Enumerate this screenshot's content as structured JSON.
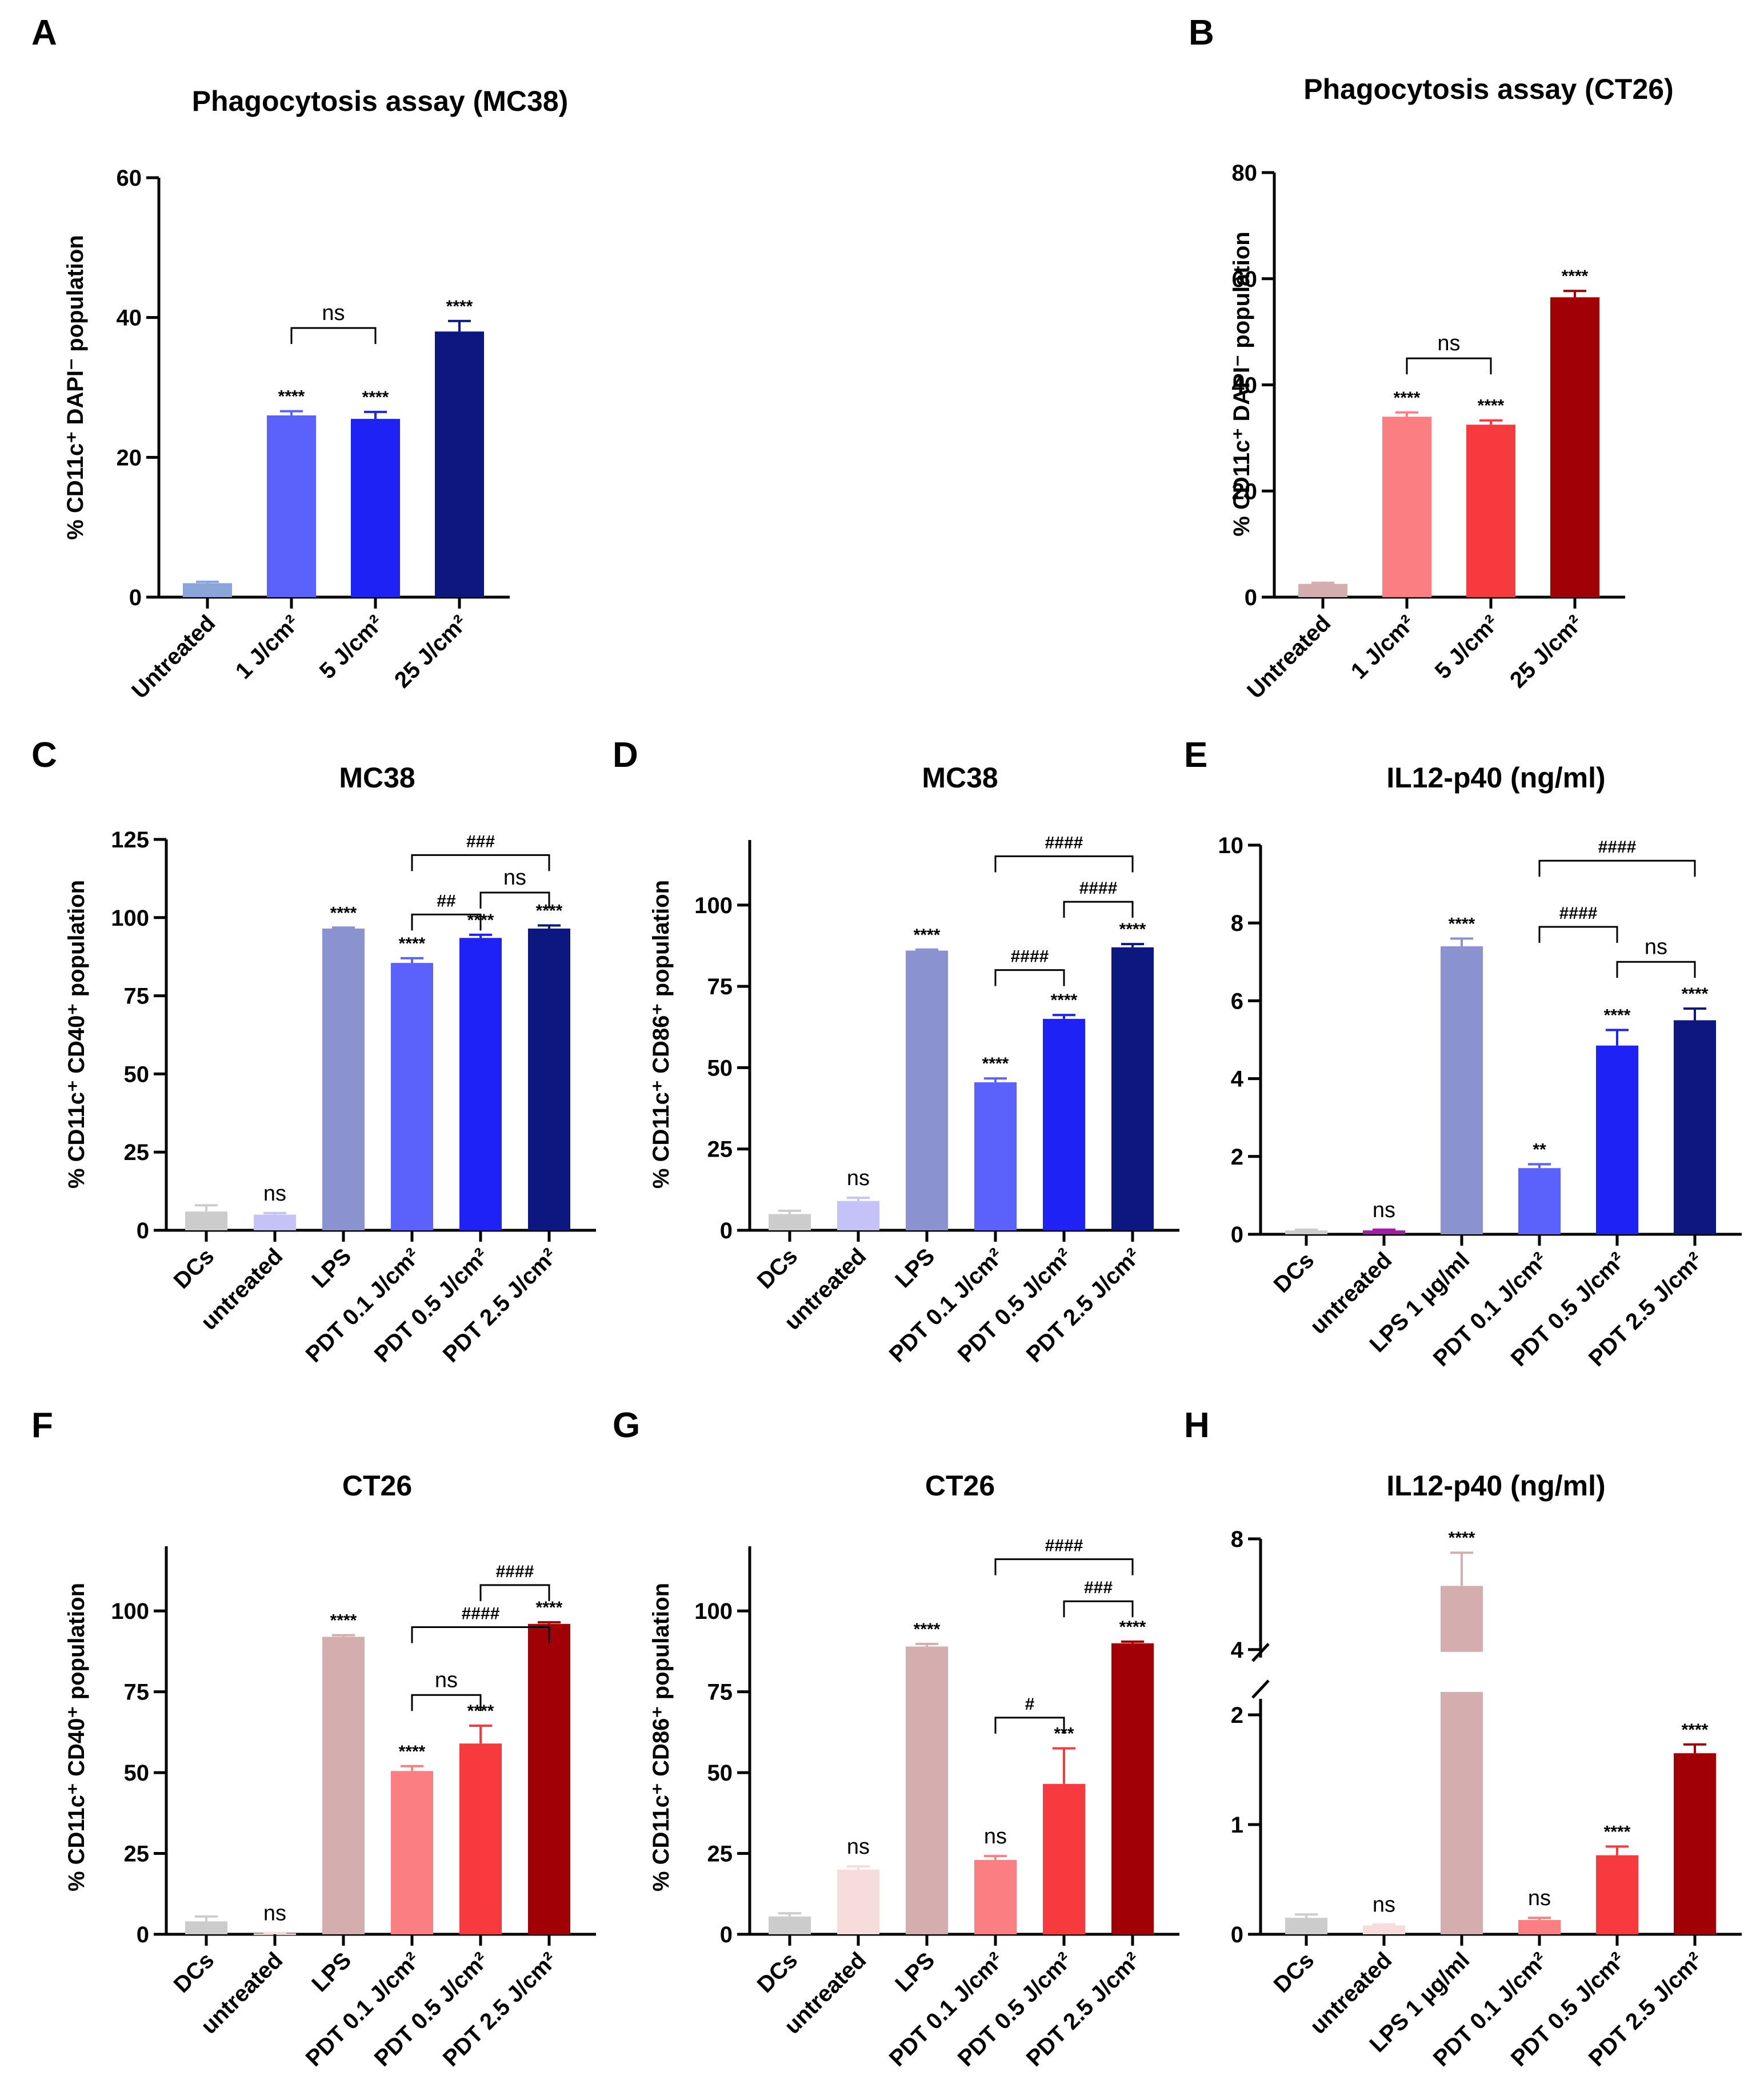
{
  "chart_data": [
    {
      "id": "A",
      "type": "bar",
      "panel_label": "A",
      "title": "Phagocytosis assay (MC38)",
      "ylabel": "% CD11c⁺ DAPI⁻ population",
      "ylim": [
        0,
        60
      ],
      "yticks": [
        0,
        20,
        40,
        60
      ],
      "categories": [
        "Untreated",
        "1 J/cm²",
        "5 J/cm²",
        "25 J/cm²"
      ],
      "values": [
        2,
        26,
        25.5,
        38
      ],
      "errors": [
        0.2,
        0.6,
        1.0,
        1.5
      ],
      "colors": [
        "#8aa5d8",
        "#5a62fb",
        "#1f22f5",
        "#0d1780"
      ],
      "labels": [
        "",
        "****",
        "****",
        "****"
      ],
      "brackets": [
        {
          "from": 1,
          "to": 2,
          "y": 38.5,
          "text": "ns"
        }
      ]
    },
    {
      "id": "B",
      "type": "bar",
      "panel_label": "B",
      "title": "Phagocytosis assay (CT26)",
      "ylabel": "% CD11c⁺ DAPI⁻ population",
      "ylim": [
        0,
        80
      ],
      "yticks": [
        0,
        20,
        40,
        60,
        80
      ],
      "categories": [
        "Untreated",
        "1 J/cm²",
        "5 J/cm²",
        "25 J/cm²"
      ],
      "values": [
        2.5,
        34,
        32.5,
        56.5
      ],
      "errors": [
        0.2,
        0.8,
        0.8,
        1.2
      ],
      "colors": [
        "#d4aeae",
        "#fb7f82",
        "#f73a3e",
        "#a10006"
      ],
      "labels": [
        "",
        "****",
        "****",
        "****"
      ],
      "brackets": [
        {
          "from": 1,
          "to": 2,
          "y": 45,
          "text": "ns"
        }
      ]
    },
    {
      "id": "C",
      "type": "bar",
      "panel_label": "C",
      "title": "MC38",
      "ylabel": "% CD11c⁺ CD40⁺ population",
      "ylim": [
        0,
        125
      ],
      "yticks": [
        0,
        25,
        50,
        75,
        100,
        125
      ],
      "categories": [
        "DCs",
        "untreated",
        "LPS",
        "PDT 0.1 J/cm²",
        "PDT 0.5 J/cm²",
        "PDT 2.5 J/cm²"
      ],
      "values": [
        6,
        5,
        96.5,
        85.5,
        93.5,
        96.5
      ],
      "errors": [
        2,
        0.5,
        0.3,
        1.5,
        1.0,
        1.0
      ],
      "colors": [
        "#cccccc",
        "#c4c2f7",
        "#8a92cf",
        "#5a62fb",
        "#1f22f5",
        "#0d1780"
      ],
      "labels": [
        "",
        "ns",
        "****",
        "****",
        "****",
        "****"
      ],
      "brackets": [
        {
          "from": 3,
          "to": 4,
          "y": 101,
          "text": "##"
        },
        {
          "from": 4,
          "to": 5,
          "y": 108,
          "text": "ns"
        },
        {
          "from": 3,
          "to": 5,
          "y": 120,
          "text": "###"
        }
      ]
    },
    {
      "id": "D",
      "type": "bar",
      "panel_label": "D",
      "title": "MC38",
      "ylabel": "% CD11c⁺ CD86⁺ population",
      "ylim": [
        0,
        120
      ],
      "yticks": [
        0,
        25,
        50,
        75,
        100
      ],
      "categories": [
        "DCs",
        "untreated",
        "LPS",
        "PDT 0.1 J/cm²",
        "PDT 0.5 J/cm²",
        "PDT 2.5 J/cm²"
      ],
      "values": [
        5,
        9,
        86,
        45.5,
        65,
        87
      ],
      "errors": [
        1,
        1,
        0.3,
        1.2,
        1.2,
        1.0
      ],
      "colors": [
        "#cccccc",
        "#c4c2f7",
        "#8a92cf",
        "#5a62fb",
        "#1f22f5",
        "#0d1780"
      ],
      "labels": [
        "",
        "ns",
        "****",
        "****",
        "****",
        "****"
      ],
      "brackets": [
        {
          "from": 3,
          "to": 4,
          "y": 80,
          "text": "####"
        },
        {
          "from": 4,
          "to": 5,
          "y": 101,
          "text": "####"
        },
        {
          "from": 3,
          "to": 5,
          "y": 115,
          "text": "####"
        }
      ]
    },
    {
      "id": "E",
      "type": "bar",
      "panel_label": "E",
      "title": "IL12-p40 (ng/ml)",
      "ylabel": "",
      "ylim": [
        0,
        10
      ],
      "yticks": [
        0,
        2,
        4,
        6,
        8,
        10
      ],
      "categories": [
        "DCs",
        "untreated",
        "LPS 1 µg/ml",
        "PDT 0.1 J/cm²",
        "PDT 0.5 J/cm²",
        "PDT 2.5 J/cm²"
      ],
      "values": [
        0.1,
        0.1,
        7.4,
        1.7,
        4.85,
        5.5
      ],
      "errors": [
        0.02,
        0.02,
        0.2,
        0.1,
        0.4,
        0.3
      ],
      "colors": [
        "#cccccc",
        "#a01da6",
        "#8a92cf",
        "#5a62fb",
        "#1f22f5",
        "#0d1780"
      ],
      "labels": [
        "",
        "ns",
        "****",
        "**",
        "****",
        "****"
      ],
      "brackets": [
        {
          "from": 4,
          "to": 5,
          "y": 7.0,
          "text": "ns"
        },
        {
          "from": 3,
          "to": 4,
          "y": 7.9,
          "text": "####"
        },
        {
          "from": 3,
          "to": 5,
          "y": 9.6,
          "text": "####"
        }
      ]
    },
    {
      "id": "F",
      "type": "bar",
      "panel_label": "F",
      "title": "CT26",
      "ylabel": "% CD11c⁺ CD40⁺ population",
      "ylim": [
        0,
        120
      ],
      "yticks": [
        0,
        25,
        50,
        75,
        100
      ],
      "categories": [
        "DCs",
        "untreated",
        "LPS",
        "PDT 0.1 J/cm²",
        "PDT 0.5 J/cm²",
        "PDT 2.5 J/cm²"
      ],
      "values": [
        4,
        0.3,
        92,
        50.5,
        59,
        96
      ],
      "errors": [
        1.5,
        0.1,
        0.5,
        1.5,
        5.5,
        0.5
      ],
      "colors": [
        "#cccccc",
        "#f7dcdc",
        "#d4aeae",
        "#fb7f82",
        "#f73a3e",
        "#a10006"
      ],
      "labels": [
        "",
        "ns",
        "****",
        "****",
        "****",
        "****"
      ],
      "brackets": [
        {
          "from": 3,
          "to": 4,
          "y": 74,
          "text": "ns"
        },
        {
          "from": 3,
          "to": 5,
          "y": 95,
          "text": "####"
        },
        {
          "from": 4,
          "to": 5,
          "y": 108,
          "text": "####"
        }
      ]
    },
    {
      "id": "G",
      "type": "bar",
      "panel_label": "G",
      "title": "CT26",
      "ylabel": "% CD11c⁺ CD86⁺ population",
      "ylim": [
        0,
        120
      ],
      "yticks": [
        0,
        25,
        50,
        75,
        100
      ],
      "categories": [
        "DCs",
        "untreated",
        "LPS",
        "PDT 0.1 J/cm²",
        "PDT 0.5 J/cm²",
        "PDT 2.5 J/cm²"
      ],
      "values": [
        5.5,
        20,
        89,
        23,
        46.5,
        90
      ],
      "errors": [
        1,
        1,
        0.8,
        1.2,
        11,
        0.5
      ],
      "colors": [
        "#cccccc",
        "#f7dcdc",
        "#d4aeae",
        "#fb7f82",
        "#f73a3e",
        "#a10006"
      ],
      "labels": [
        "",
        "ns",
        "****",
        "ns",
        "***",
        "****"
      ],
      "brackets": [
        {
          "from": 3,
          "to": 4,
          "y": 67,
          "text": "#"
        },
        {
          "from": 4,
          "to": 5,
          "y": 103,
          "text": "###"
        },
        {
          "from": 3,
          "to": 5,
          "y": 116,
          "text": "####"
        }
      ]
    },
    {
      "id": "H",
      "type": "bar",
      "panel_label": "H",
      "title": "IL12-p40 (ng/ml)",
      "ylabel": "",
      "ylim": [
        0,
        8
      ],
      "yticks": [
        0,
        1,
        2,
        4,
        8
      ],
      "axis_break": [
        2.5,
        4
      ],
      "categories": [
        "DCs",
        "untreated",
        "LPS 1 µg/ml",
        "PDT 0.1 J/cm²",
        "PDT 0.5 J/cm²",
        "PDT 2.5 J/cm²"
      ],
      "values": [
        0.15,
        0.08,
        6.3,
        0.13,
        0.72,
        1.65
      ],
      "errors": [
        0.03,
        0.01,
        1.2,
        0.02,
        0.08,
        0.08
      ],
      "colors": [
        "#cccccc",
        "#f7dcdc",
        "#d4aeae",
        "#fb7f82",
        "#f73a3e",
        "#a10006"
      ],
      "labels": [
        "",
        "ns",
        "****",
        "ns",
        "****",
        "****"
      ],
      "brackets": []
    }
  ]
}
